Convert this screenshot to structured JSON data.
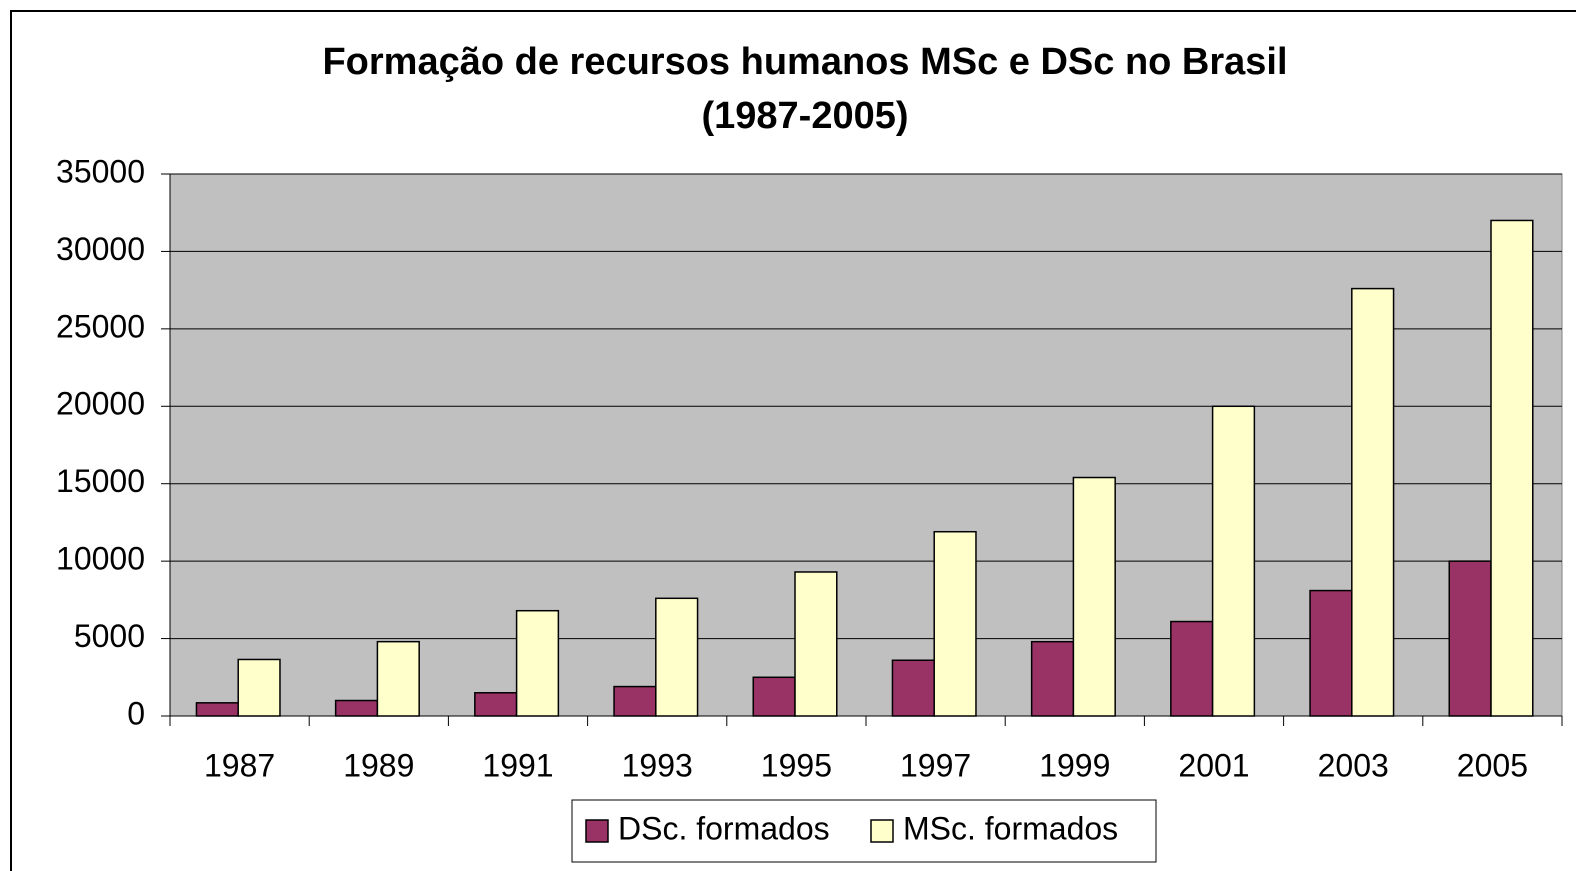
{
  "chart_data": {
    "type": "bar",
    "title": [
      "Formação de recursos humanos MSc e DSc no Brasil",
      "(1987-2005)"
    ],
    "categories": [
      "1987",
      "1989",
      "1991",
      "1993",
      "1995",
      "1997",
      "1999",
      "2001",
      "2003",
      "2005"
    ],
    "series": [
      {
        "name": "DSc. formados",
        "color": "#993366",
        "values": [
          850,
          1000,
          1500,
          1900,
          2500,
          3600,
          4800,
          6100,
          8100,
          10000
        ]
      },
      {
        "name": "MSc. formados",
        "color": "#ffffcc",
        "values": [
          3650,
          4800,
          6800,
          7600,
          9300,
          11900,
          15400,
          20000,
          27600,
          32000
        ]
      }
    ],
    "ylim": [
      0,
      35000
    ],
    "yticks": [
      0,
      5000,
      10000,
      15000,
      20000,
      25000,
      30000,
      35000
    ],
    "grid": true,
    "legend": "bottom"
  }
}
